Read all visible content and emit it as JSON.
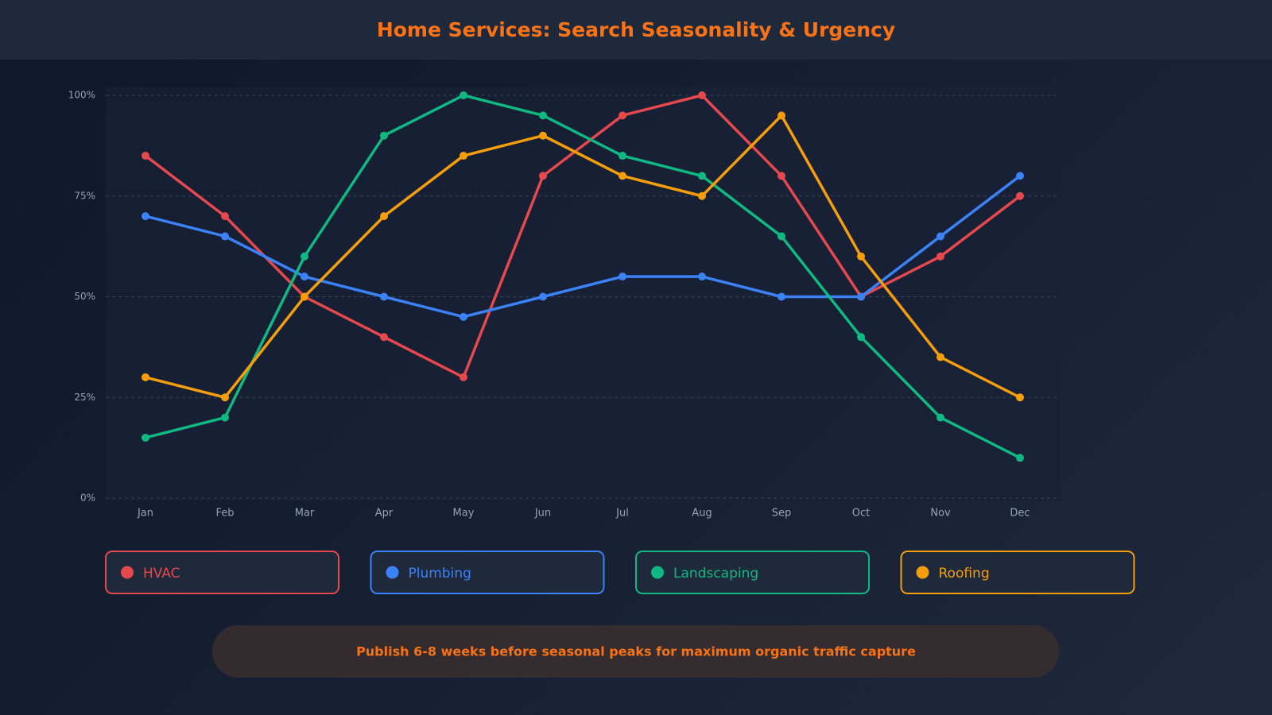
{
  "chart_data": {
    "type": "line",
    "title": "Home Services: Search Seasonality & Urgency",
    "categories": [
      "Jan",
      "Feb",
      "Mar",
      "Apr",
      "May",
      "Jun",
      "Jul",
      "Aug",
      "Sep",
      "Oct",
      "Nov",
      "Dec"
    ],
    "series": [
      {
        "name": "HVAC",
        "color": "#e5484d",
        "values": [
          85,
          70,
          50,
          40,
          30,
          80,
          95,
          100,
          80,
          50,
          60,
          75
        ]
      },
      {
        "name": "Plumbing",
        "color": "#3b82f6",
        "values": [
          70,
          65,
          55,
          50,
          45,
          50,
          55,
          55,
          50,
          50,
          65,
          80
        ]
      },
      {
        "name": "Landscaping",
        "color": "#10b981",
        "values": [
          15,
          20,
          60,
          90,
          100,
          95,
          85,
          80,
          65,
          40,
          20,
          10
        ]
      },
      {
        "name": "Roofing",
        "color": "#f59e0b",
        "values": [
          30,
          25,
          50,
          70,
          85,
          90,
          80,
          75,
          95,
          60,
          35,
          25
        ]
      }
    ],
    "ylim": [
      0,
      100
    ],
    "yticks": [
      {
        "value": 0,
        "label": "0%"
      },
      {
        "value": 25,
        "label": "25%"
      },
      {
        "value": 50,
        "label": "50%"
      },
      {
        "value": 75,
        "label": "75%"
      },
      {
        "value": 100,
        "label": "100%"
      }
    ],
    "grid": true,
    "annotation": "Publish 6-8 weeks before seasonal peaks for maximum organic traffic capture"
  }
}
